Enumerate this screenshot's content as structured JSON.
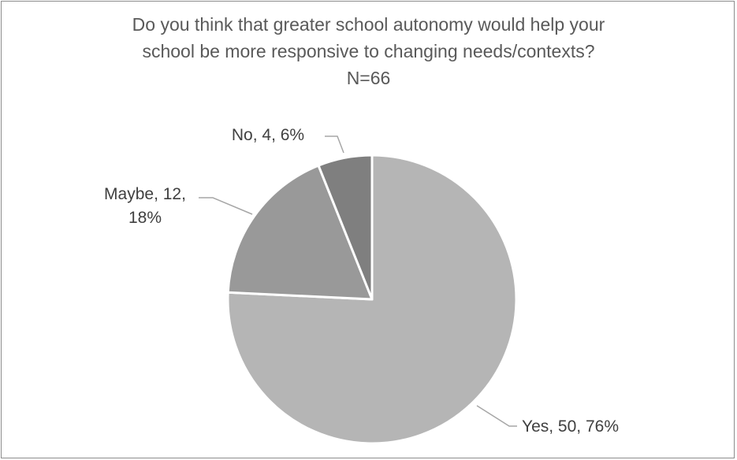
{
  "chart_data": {
    "type": "pie",
    "title": [
      "Do you think that greater school autonomy would help your",
      "school be more responsive to changing needs/contexts?",
      "N=66"
    ],
    "slices": [
      {
        "category": "Yes",
        "count": 50,
        "percent": "76%",
        "label_lines": [
          "Yes, 50, 76%"
        ],
        "color": "#b5b5b5"
      },
      {
        "category": "Maybe",
        "count": 12,
        "percent": "18%",
        "label_lines": [
          "Maybe, 12,",
          "18%"
        ],
        "color": "#999999"
      },
      {
        "category": "No",
        "count": 4,
        "percent": "6%",
        "label_lines": [
          "No, 4, 6%"
        ],
        "color": "#7f7f7f"
      }
    ],
    "start_angle_deg": 0,
    "direction": "clockwise",
    "legend": "none"
  }
}
